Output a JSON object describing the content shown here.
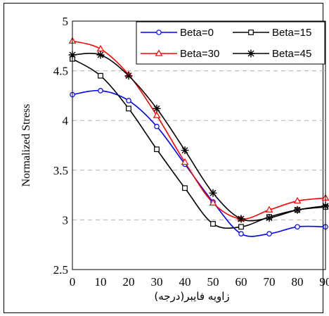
{
  "chart_data": {
    "type": "line",
    "title": "",
    "xlabel": "زاویه فایبر(درجه)",
    "ylabel": "Normalized Stress",
    "xlim": [
      0,
      90
    ],
    "ylim": [
      2.5,
      5
    ],
    "x_ticks": [
      "0",
      "10",
      "20",
      "30",
      "40",
      "50",
      "60",
      "70",
      "80",
      "90"
    ],
    "y_ticks": [
      "2.5",
      "3",
      "3.5",
      "4",
      "4.5",
      "5"
    ],
    "grid": "horizontal-dashed",
    "legend_position": "top-right",
    "x": [
      0,
      10,
      20,
      30,
      40,
      50,
      60,
      70,
      80,
      90
    ],
    "series": [
      {
        "name": "Beta=0",
        "color": "#0000ff",
        "marker": "circle",
        "values": [
          4.26,
          4.3,
          4.2,
          3.94,
          3.56,
          3.18,
          2.86,
          2.86,
          2.93,
          2.93
        ]
      },
      {
        "name": "Beta=15",
        "color": "#000000",
        "marker": "square",
        "values": [
          4.62,
          4.45,
          4.12,
          3.71,
          3.32,
          2.96,
          2.93,
          3.03,
          3.1,
          3.13
        ]
      },
      {
        "name": "Beta=30",
        "color": "#ff0000",
        "marker": "triangle",
        "values": [
          4.8,
          4.72,
          4.46,
          4.05,
          3.58,
          3.17,
          3.01,
          3.1,
          3.19,
          3.22
        ]
      },
      {
        "name": "Beta=45",
        "color": "#000000",
        "marker": "star",
        "values": [
          4.66,
          4.66,
          4.45,
          4.12,
          3.7,
          3.27,
          3.01,
          3.02,
          3.1,
          3.14
        ]
      }
    ]
  }
}
